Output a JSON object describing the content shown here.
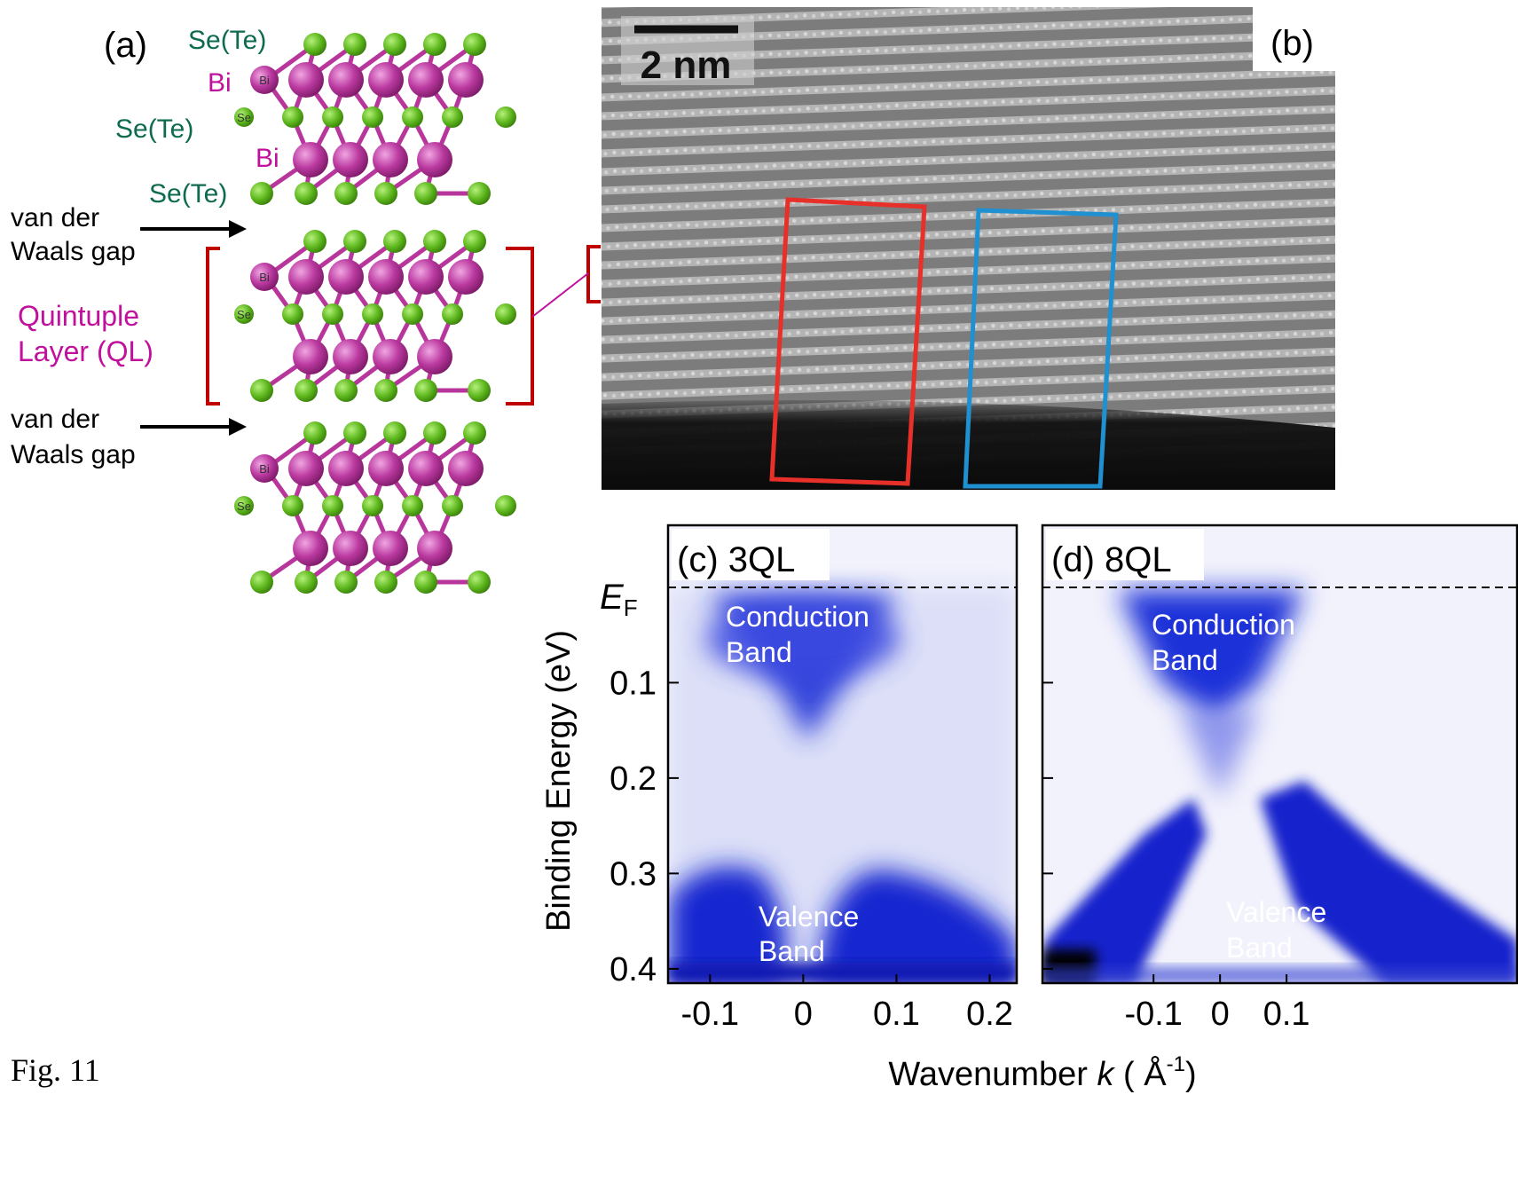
{
  "panel_a": {
    "label": "(a)",
    "atom_labels": [
      "Se(Te)",
      "Bi",
      "Se(Te)",
      "Bi",
      "Se(Te)"
    ],
    "atom_tags": [
      "Bi",
      "Se",
      "Bi",
      "Se",
      "Bi",
      "Se"
    ],
    "gap_labels": [
      [
        "van der",
        "Waals gap"
      ],
      [
        "van der",
        "Waals gap"
      ]
    ],
    "layer_label": [
      "Quintuple",
      "Layer (QL)"
    ]
  },
  "panel_b": {
    "label": "(b)",
    "scale_bar": "2 nm"
  },
  "panel_c": {
    "label": "(c) 3QL",
    "conduction": [
      "Conduction",
      "Band"
    ],
    "valence": [
      "Valence",
      "Band"
    ],
    "xlim": [
      -0.145,
      0.229
    ],
    "xticks": [
      -0.1,
      0,
      0.1,
      0.2
    ]
  },
  "panel_d": {
    "label": "(d) 8QL",
    "conduction": [
      "Conduction",
      "Band"
    ],
    "valence": [
      "Valence",
      "Band"
    ],
    "xlim": [
      -0.267,
      0.448
    ],
    "xticks": [
      -0.1,
      0,
      0.1
    ]
  },
  "energy_axis": {
    "ef_label": {
      "symbol": "E",
      "subscript": "F"
    },
    "title": "Binding Energy (eV)",
    "ylim": [
      -0.065,
      0.415
    ],
    "yticks": [
      0.1,
      0.2,
      0.3,
      0.4
    ]
  },
  "k_axis": {
    "title": {
      "text": "Wavenumber ",
      "variable": "k",
      "unit": " ( Å",
      "superscript": "-1",
      "close": ")"
    }
  },
  "caption": "Fig. 11"
}
